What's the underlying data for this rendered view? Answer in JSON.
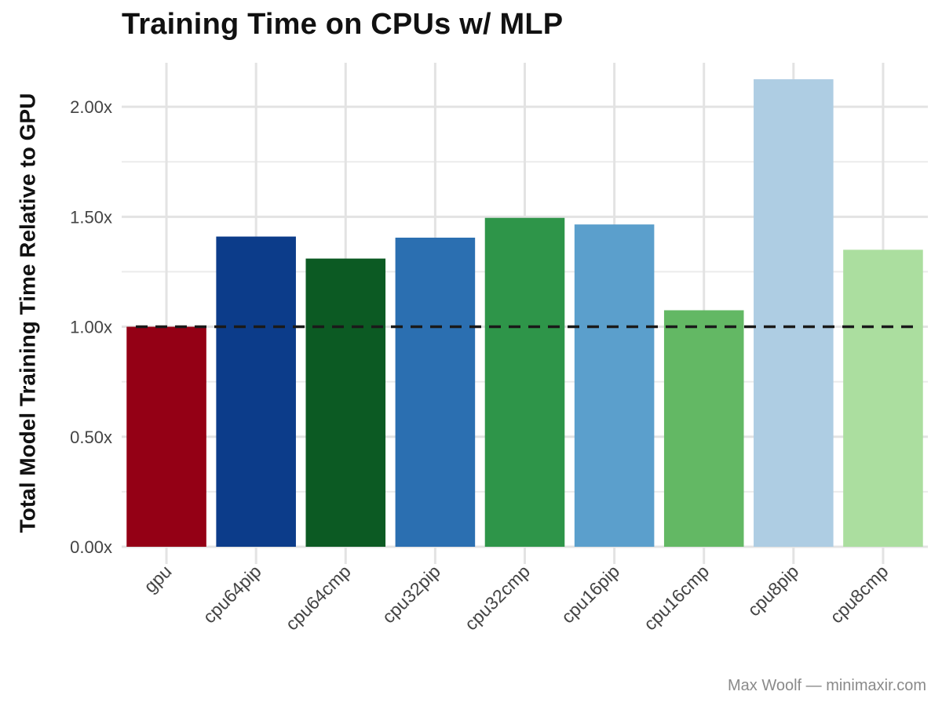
{
  "chart_data": {
    "type": "bar",
    "title": "Training Time on CPUs w/ MLP",
    "xlabel": "",
    "ylabel": "Total Model Training Time Relative to GPU",
    "categories": [
      "gpu",
      "cpu64pip",
      "cpu64cmp",
      "cpu32pip",
      "cpu32cmp",
      "cpu16pip",
      "cpu16cmp",
      "cpu8pip",
      "cpu8cmp"
    ],
    "values": [
      1.0,
      1.41,
      1.31,
      1.405,
      1.495,
      1.465,
      1.075,
      2.125,
      1.35
    ],
    "colors": [
      "#940015",
      "#0c3c8a",
      "#0c5a23",
      "#2b6fb1",
      "#2e9549",
      "#5b9fcc",
      "#63b864",
      "#aecde3",
      "#abde9f"
    ],
    "ylim": [
      0,
      2.2
    ],
    "yticks": [
      0,
      0.5,
      1.0,
      1.5,
      2.0
    ],
    "ytick_labels": [
      "0.00x",
      "0.50x",
      "1.00x",
      "1.50x",
      "2.00x"
    ],
    "reference_line": {
      "y": 1.0,
      "style": "dashed",
      "color": "#1a1a1a"
    },
    "grid": true,
    "legend": "none"
  },
  "caption": "Max Woolf — minimaxir.com"
}
